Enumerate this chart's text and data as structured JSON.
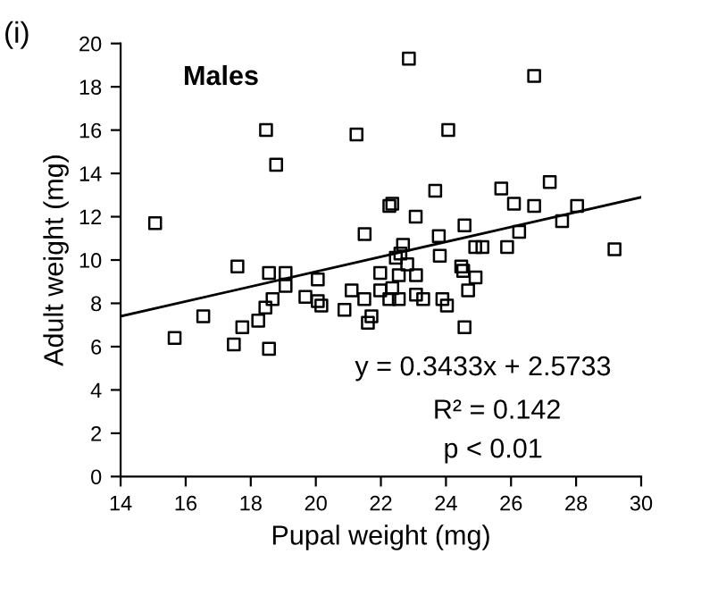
{
  "chart_data": {
    "type": "scatter",
    "title": "Males",
    "xlabel": "Pupal weight (mg)",
    "ylabel": "Adult weight (mg)",
    "annotations": [
      "(i)",
      "y = 0.3433x + 2.5733",
      "R² = 0.142",
      "p < 0.01"
    ],
    "series": [
      {
        "color": "#000000",
        "marker": "square",
        "x": [
          15.06,
          15.66,
          16.54,
          17.48,
          17.59,
          17.74,
          18.23,
          18.45,
          18.47,
          18.56,
          18.56,
          18.67,
          18.78,
          19.07,
          19.07,
          19.68,
          20.06,
          20.06,
          20.17,
          20.88,
          21.1,
          21.25,
          21.49,
          21.5,
          21.6,
          21.71,
          21.98,
          21.98,
          22.26,
          22.35,
          22.26,
          22.35,
          22.46,
          22.55,
          22.55,
          22.6,
          22.68,
          22.81,
          22.86,
          23.07,
          23.08,
          23.08,
          23.3,
          23.67,
          23.78,
          23.81,
          23.89,
          24.03,
          24.07,
          24.47,
          24.53,
          24.57,
          24.57,
          24.68,
          24.91,
          24.9,
          25.12,
          25.7,
          25.88,
          26.09,
          26.25,
          26.71,
          26.71,
          27.19,
          27.57,
          28.03,
          29.18
        ],
        "values": [
          11.7,
          6.4,
          7.4,
          6.1,
          9.7,
          6.9,
          7.2,
          7.8,
          16.0,
          9.4,
          5.9,
          8.2,
          14.4,
          9.4,
          8.8,
          8.3,
          9.1,
          8.1,
          7.9,
          7.7,
          8.6,
          15.8,
          8.2,
          11.2,
          7.1,
          7.4,
          9.4,
          8.6,
          12.5,
          12.6,
          8.2,
          8.7,
          10.1,
          9.3,
          8.2,
          10.3,
          10.7,
          9.8,
          19.3,
          12.0,
          9.3,
          8.4,
          8.2,
          13.2,
          11.1,
          10.2,
          8.2,
          7.9,
          16.0,
          9.7,
          9.5,
          11.6,
          6.9,
          8.6,
          9.2,
          10.6,
          10.6,
          13.3,
          10.6,
          12.6,
          11.3,
          18.5,
          12.5,
          13.6,
          11.8,
          12.5,
          10.5
        ]
      },
      {
        "type": "line",
        "color": "#000000",
        "line_style": "solid",
        "x": [
          14,
          30
        ],
        "values": [
          7.4,
          12.9
        ]
      }
    ],
    "xlim": [
      14,
      30
    ],
    "xticks": [
      14,
      16,
      18,
      20,
      22,
      24,
      26,
      28,
      30
    ],
    "ylim": [
      0,
      20
    ],
    "yticks": [
      0,
      2,
      4,
      6,
      8,
      10,
      12,
      14,
      16,
      18,
      20
    ],
    "grid": false,
    "legend": false
  }
}
